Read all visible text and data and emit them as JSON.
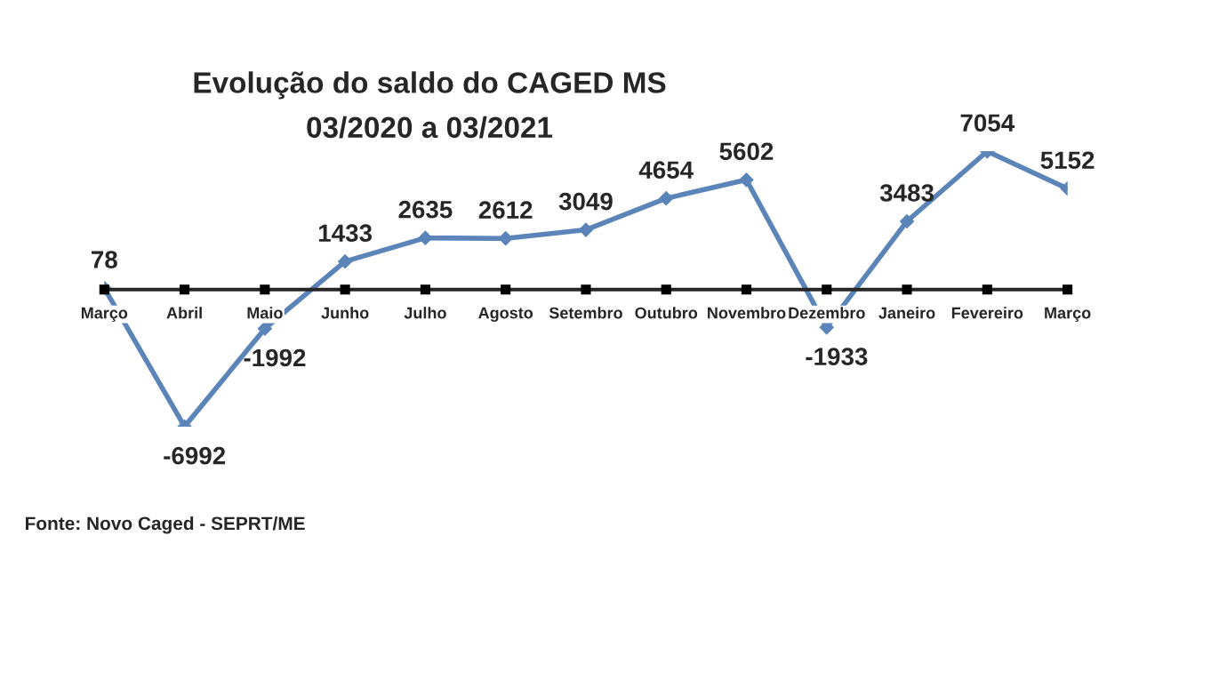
{
  "chart_data": {
    "type": "line",
    "title": "Evolução do saldo do CAGED MS",
    "subtitle": "03/2020 a 03/2021",
    "categories": [
      "Março",
      "Abril",
      "Maio",
      "Junho",
      "Julho",
      "Agosto",
      "Setembro",
      "Outubro",
      "Novembro",
      "Dezembro",
      "Janeiro",
      "Fevereiro",
      "Março"
    ],
    "series": [
      {
        "color": "#5b84b8",
        "values": [
          78,
          -6992,
          -1992,
          1433,
          2635,
          2612,
          3049,
          4654,
          5602,
          -1933,
          3483,
          7054,
          5152
        ]
      }
    ],
    "data_labels": true,
    "marker": "diamond",
    "line_style": "solid",
    "annotations": [
      "Fonte: Novo Caged - SEPRT/ME"
    ]
  }
}
